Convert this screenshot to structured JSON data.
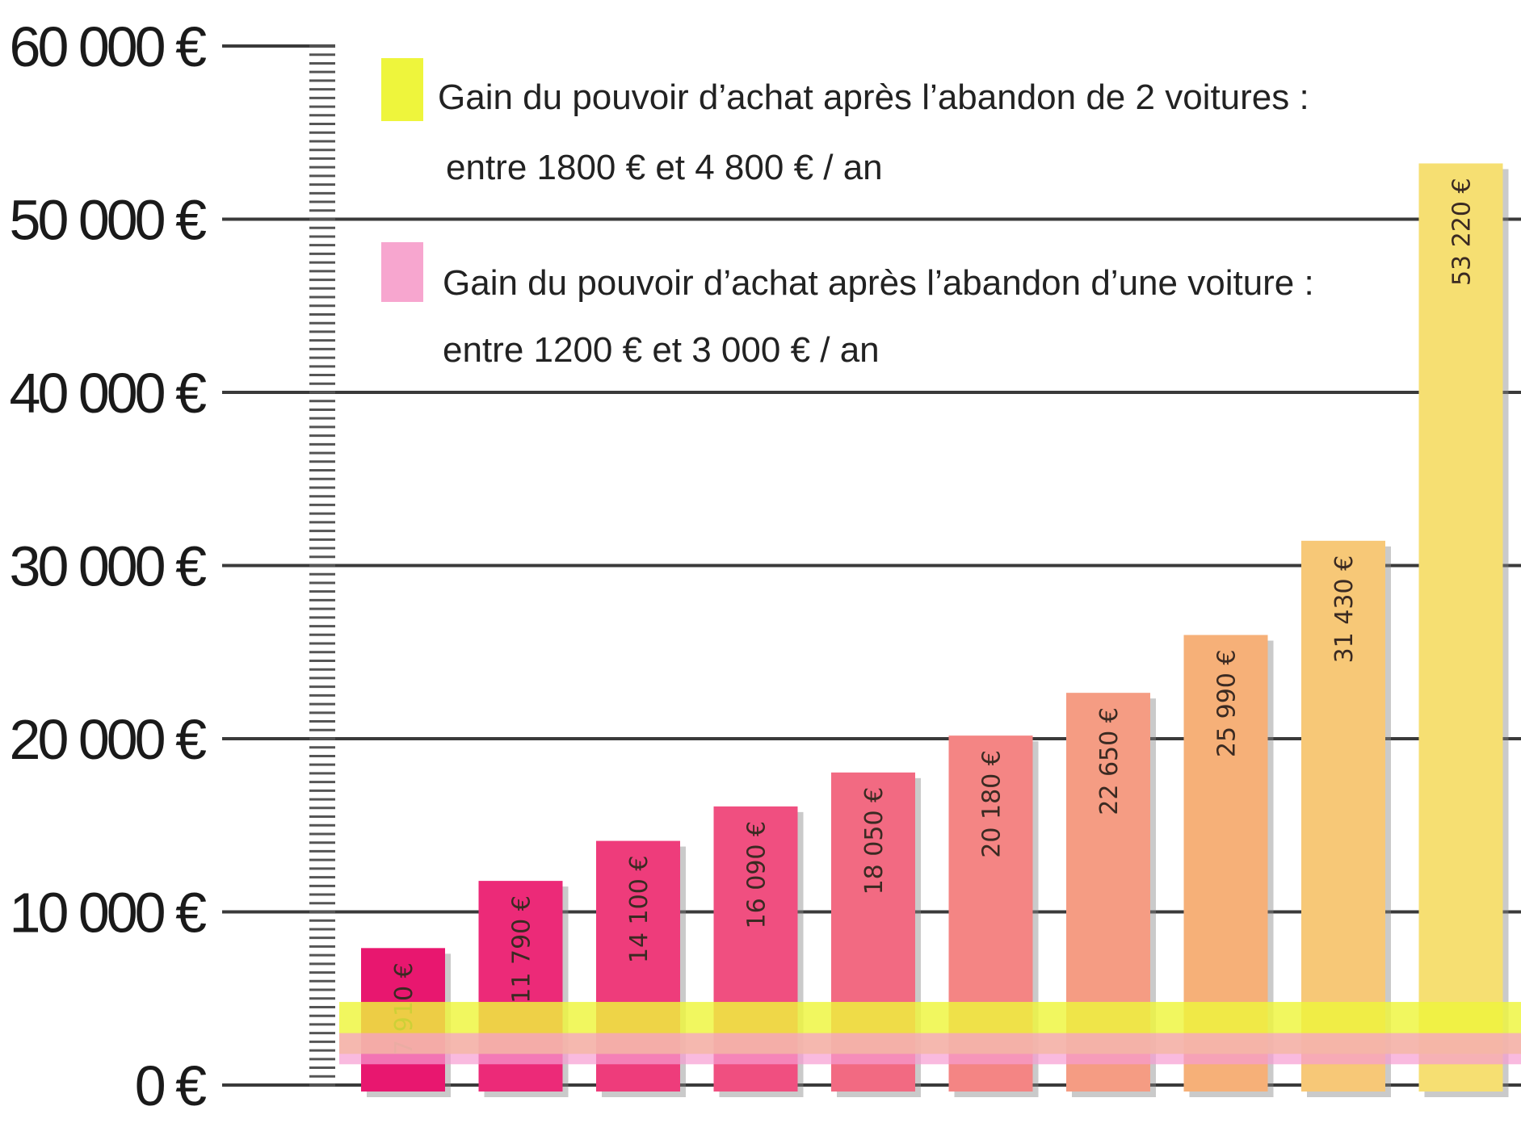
{
  "chart_data": {
    "type": "bar",
    "ylim": [
      0,
      60000
    ],
    "yticks": [
      {
        "value": 60000,
        "label": "60 000 €"
      },
      {
        "value": 50000,
        "label": "50 000 €"
      },
      {
        "value": 40000,
        "label": "40 000 €"
      },
      {
        "value": 30000,
        "label": "30 000 €"
      },
      {
        "value": 20000,
        "label": "20 000 €"
      },
      {
        "value": 10000,
        "label": "10 000 €"
      },
      {
        "value": 0,
        "label": "0 €"
      }
    ],
    "values": [
      7910,
      11790,
      14100,
      16090,
      18050,
      20180,
      22650,
      25990,
      31430,
      53220
    ],
    "value_labels": [
      "7 910 €",
      "11 790 €",
      "14 100 €",
      "16 090 €",
      "18 050 €",
      "20 180 €",
      "22 650 €",
      "25 990 €",
      "31 430 €",
      "53 220 €"
    ],
    "bar_colors": [
      "#e8176f",
      "#ec2a78",
      "#ee3c7b",
      "#f04f80",
      "#f26a82",
      "#f48584",
      "#f59c83",
      "#f6b078",
      "#f7c877",
      "#f6df72"
    ],
    "bands": [
      {
        "name": "Gain du pouvoir d’achat après l’abandon de 2 voitures :",
        "range_label": "entre 1800 € et 4 800 € / an",
        "min": 1800,
        "max": 4800,
        "color": "#eef53c"
      },
      {
        "name": "Gain du pouvoir d’achat après l’abandon d’une voiture :",
        "range_label": "entre 1200 € et 3 000 € / an",
        "min": 1200,
        "max": 3000,
        "color": "#f79cd2"
      }
    ],
    "grid": true
  }
}
